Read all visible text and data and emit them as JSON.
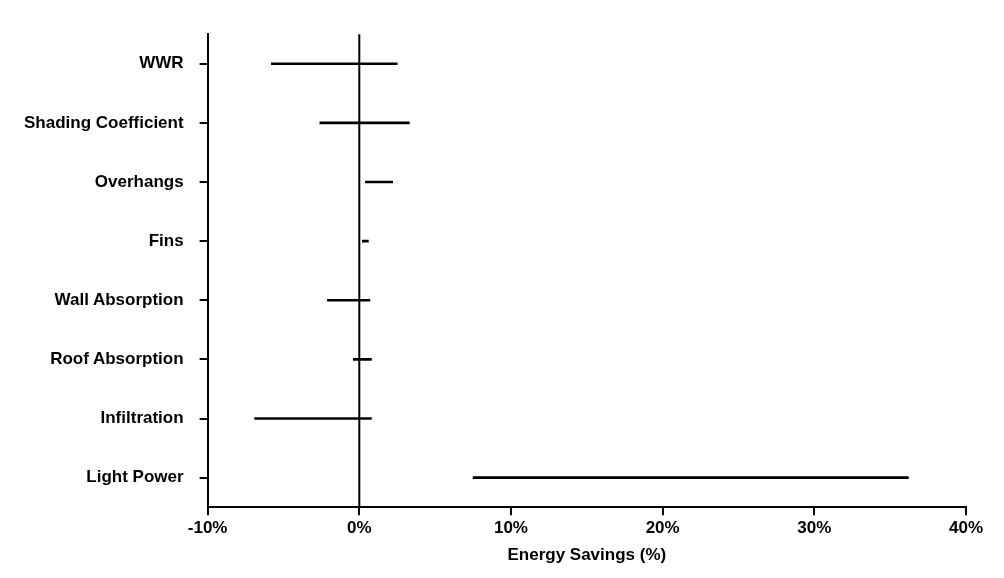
{
  "chart_data": {
    "type": "bar",
    "orientation": "horizontal",
    "xlabel": "Energy Savings (%)",
    "categories": [
      "WWR",
      "Shading Coefficient",
      "Overhangs",
      "Fins",
      "Wall Absorption",
      "Roof Absorption",
      "Infiltration",
      "Light Power"
    ],
    "base": [
      -5.8,
      -2.6,
      0.4,
      0.2,
      -2.1,
      -0.4,
      -6.9,
      7.5
    ],
    "values": [
      8.3,
      5.9,
      1.8,
      0.4,
      2.8,
      1.2,
      7.7,
      28.7
    ],
    "color": "#000000",
    "xlim": [
      -10,
      40
    ],
    "xticks": [
      {
        "value": -10,
        "label": "-10%"
      },
      {
        "value": 0,
        "label": "0%"
      },
      {
        "value": 10,
        "label": "10%"
      },
      {
        "value": 20,
        "label": "20%"
      },
      {
        "value": 30,
        "label": "30%"
      },
      {
        "value": 40,
        "label": "40%"
      }
    ],
    "ref_lines": [
      {
        "axis": "x",
        "value": 0
      }
    ],
    "grid": false,
    "legend": false
  }
}
